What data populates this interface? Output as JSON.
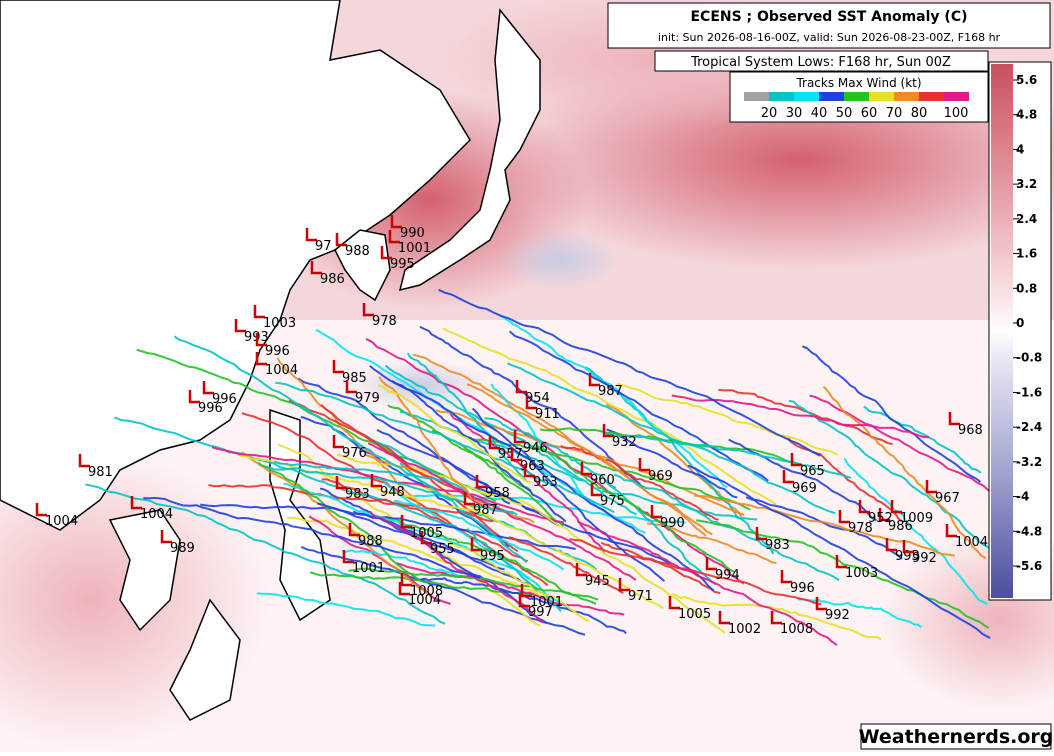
{
  "header": {
    "title": "ECENS ; Observed SST Anomaly (C)",
    "subtitle": "init: Sun 2026-08-16-00Z, valid: Sun 2026-08-23-00Z, F168 hr"
  },
  "legend": {
    "title": "Tropical System Lows: F168 hr, Sun 00Z",
    "wind_title": "Tracks Max Wind (kt)",
    "wind_labels": [
      "20",
      "30",
      "40",
      "50",
      "60",
      "70",
      "80",
      "100"
    ]
  },
  "colorbar": {
    "ticks": [
      5.6,
      4.8,
      4,
      3.2,
      2.4,
      1.6,
      0.8,
      0,
      -0.8,
      -1.6,
      -2.4,
      -3.2,
      -4,
      -4.8,
      -5.6
    ]
  },
  "lows": [
    "990",
    "1001",
    "995",
    "988",
    "97",
    "986",
    "978",
    "1003",
    "993",
    "996",
    "1004",
    "985",
    "979",
    "996",
    "996",
    "976",
    "983",
    "948",
    "954",
    "911",
    "987",
    "932",
    "946",
    "957",
    "963",
    "953",
    "960",
    "969",
    "958",
    "987",
    "975",
    "990",
    "983",
    "996",
    "992",
    "1008",
    "1002",
    "994",
    "1005",
    "971",
    "945",
    "1001",
    "997",
    "995",
    "955",
    "1008",
    "1004",
    "1001",
    "988",
    "1005",
    "981",
    "1004",
    "1004",
    "989",
    "1003",
    "993",
    "992",
    "978",
    "986",
    "1004",
    "968",
    "969",
    "965",
    "952",
    "1009",
    "967"
  ],
  "credit": "Weathernerds.org"
}
